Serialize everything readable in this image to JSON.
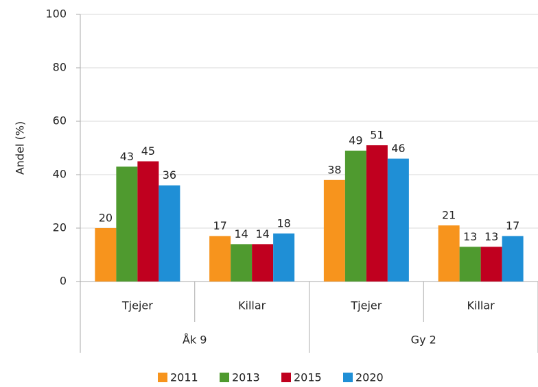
{
  "chart_data": {
    "type": "bar",
    "y_label": "Andel (%)",
    "categories": [
      "Tjejer",
      "Killar",
      "Tjejer",
      "Killar"
    ],
    "groups": [
      "Åk 9",
      "Gy 2"
    ],
    "series": [
      {
        "name": "2011",
        "color": "#f7941d",
        "values": [
          20,
          17,
          38,
          21
        ]
      },
      {
        "name": "2013",
        "color": "#4f9a2f",
        "values": [
          43,
          14,
          49,
          13
        ]
      },
      {
        "name": "2015",
        "color": "#c0001f",
        "values": [
          45,
          14,
          51,
          13
        ]
      },
      {
        "name": "2020",
        "color": "#1f8fd6",
        "values": [
          36,
          18,
          46,
          17
        ]
      }
    ],
    "ylim": [
      0,
      100
    ],
    "yticks": [
      0,
      20,
      40,
      60,
      80,
      100
    ],
    "grid": true,
    "legend": "bottom"
  }
}
